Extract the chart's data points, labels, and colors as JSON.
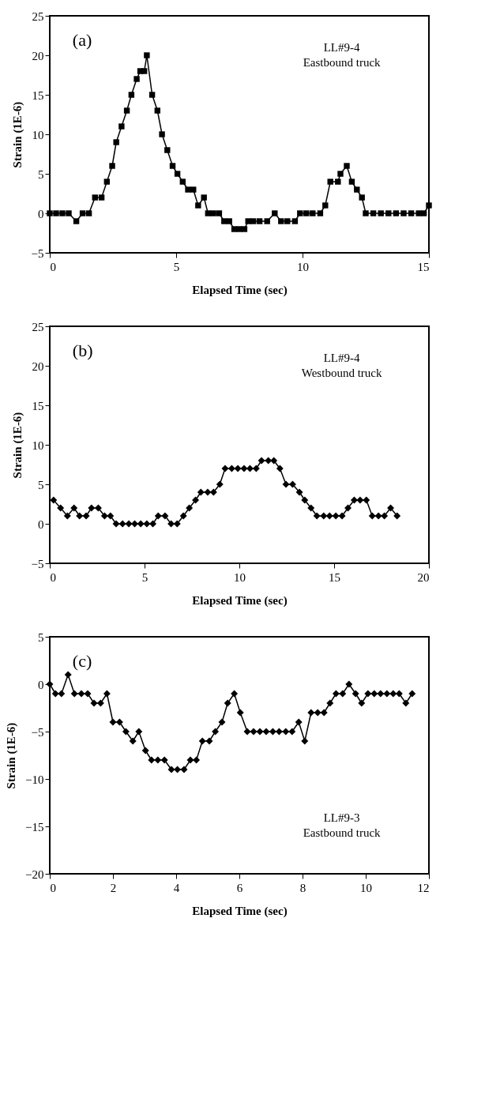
{
  "chart_data": [
    {
      "type": "line",
      "xlabel": "Elapsed Time (sec)",
      "ylabel": "Strain (1E-6)",
      "xlim": [
        0,
        15
      ],
      "ylim": [
        -5,
        25
      ],
      "xticks": [
        0,
        5,
        10,
        15
      ],
      "yticks": [
        -5,
        0,
        5,
        10,
        15,
        20,
        25
      ],
      "grid": false,
      "marker": "square",
      "line_style": "solid",
      "annotations": [
        "(a)",
        "LL#9-4\nEastbound truck"
      ],
      "series": [
        {
          "color": "#000000",
          "x": [
            0,
            0.25,
            0.5,
            0.75,
            1.05,
            1.3,
            1.55,
            1.79,
            2.05,
            2.26,
            2.47,
            2.63,
            2.84,
            3.05,
            3.23,
            3.44,
            3.58,
            3.74,
            3.84,
            4.05,
            4.26,
            4.44,
            4.65,
            4.86,
            5.05,
            5.26,
            5.47,
            5.68,
            5.87,
            6.1,
            6.26,
            6.47,
            6.7,
            6.9,
            7.1,
            7.3,
            7.5,
            7.7,
            7.85,
            8.05,
            8.3,
            8.6,
            8.9,
            9.15,
            9.4,
            9.7,
            9.9,
            10.15,
            10.4,
            10.7,
            10.9,
            11.1,
            11.4,
            11.5,
            11.75,
            11.95,
            12.15,
            12.35,
            12.5,
            12.8,
            13.1,
            13.4,
            13.7,
            14.0,
            14.3,
            14.6,
            14.8,
            15
          ],
          "values": [
            0,
            0,
            0,
            0,
            -1,
            0,
            0,
            2,
            2,
            4,
            6,
            9,
            11,
            13,
            15,
            17,
            18,
            18,
            20,
            15,
            13,
            10,
            8,
            6,
            5,
            4,
            3,
            3,
            1,
            2,
            0,
            0,
            0,
            -1,
            -1,
            -2,
            -2,
            -2,
            -1,
            -1,
            -1,
            -1,
            0,
            -1,
            -1,
            -1,
            0,
            0,
            0,
            0,
            1,
            4,
            4,
            5,
            6,
            4,
            3,
            2,
            0,
            0,
            0,
            0,
            0,
            0,
            0,
            0,
            0,
            1
          ]
        }
      ]
    },
    {
      "type": "line",
      "xlabel": "Elapsed Time (sec)",
      "ylabel": "Strain (1E-6)",
      "xlim": [
        0,
        20
      ],
      "ylim": [
        -5,
        25
      ],
      "xticks": [
        0,
        5,
        10,
        15,
        20
      ],
      "yticks": [
        -5,
        0,
        5,
        10,
        15,
        20,
        25
      ],
      "grid": false,
      "marker": "diamond",
      "line_style": "solid",
      "annotations": [
        "(b)",
        "LL#9-4\nWestbound truck"
      ],
      "series": [
        {
          "color": "#000000",
          "x": [
            0.2,
            0.57,
            0.93,
            1.28,
            1.57,
            1.92,
            2.2,
            2.56,
            2.89,
            3.2,
            3.5,
            3.84,
            4.17,
            4.48,
            4.8,
            5.12,
            5.44,
            5.72,
            6.08,
            6.4,
            6.72,
            7.05,
            7.36,
            7.69,
            7.97,
            8.33,
            8.64,
            8.97,
            9.25,
            9.6,
            9.92,
            10.25,
            10.56,
            10.89,
            11.17,
            11.53,
            11.82,
            12.14,
            12.46,
            12.81,
            13.17,
            13.45,
            13.78,
            14.09,
            14.45,
            14.76,
            15.09,
            15.42,
            15.73,
            16.06,
            16.37,
            16.7,
            17.01,
            17.34,
            17.65,
            17.98,
            18.32
          ],
          "values": [
            3,
            2,
            1,
            2,
            1,
            1,
            2,
            2,
            1,
            1,
            0,
            0,
            0,
            0,
            0,
            0,
            0,
            1,
            1,
            0,
            0,
            1,
            2,
            3,
            4,
            4,
            4,
            5,
            7,
            7,
            7,
            7,
            7,
            7,
            8,
            8,
            8,
            7,
            5,
            5,
            4,
            3,
            2,
            1,
            1,
            1,
            1,
            1,
            2,
            3,
            3,
            3,
            1,
            1,
            1,
            2,
            1
          ]
        }
      ]
    },
    {
      "type": "line",
      "xlabel": "Elapsed Time (sec)",
      "ylabel": "Strain (1E-6)",
      "xlim": [
        0,
        12
      ],
      "ylim": [
        -20,
        5
      ],
      "xticks": [
        0,
        2,
        4,
        6,
        8,
        10,
        12
      ],
      "yticks": [
        -20,
        -15,
        -10,
        -5,
        0,
        5
      ],
      "grid": false,
      "marker": "diamond",
      "line_style": "solid",
      "annotations": [
        "(c)",
        "LL#9-3\nEastbound truck"
      ],
      "series": [
        {
          "color": "#000000",
          "x": [
            0,
            0.18,
            0.37,
            0.58,
            0.78,
            1.0,
            1.2,
            1.4,
            1.61,
            1.81,
            2.0,
            2.21,
            2.41,
            2.63,
            2.82,
            3.03,
            3.22,
            3.42,
            3.63,
            3.85,
            4.04,
            4.25,
            4.45,
            4.64,
            4.83,
            5.05,
            5.24,
            5.45,
            5.63,
            5.84,
            6.03,
            6.25,
            6.45,
            6.65,
            6.85,
            7.06,
            7.26,
            7.47,
            7.67,
            7.88,
            8.07,
            8.27,
            8.48,
            8.68,
            8.87,
            9.06,
            9.27,
            9.47,
            9.68,
            9.87,
            10.07,
            10.27,
            10.47,
            10.67,
            10.87,
            11.06,
            11.27,
            11.47
          ],
          "values": [
            0,
            -1,
            -1,
            1,
            -1,
            -1,
            -1,
            -2,
            -2,
            -1,
            -4,
            -4,
            -5,
            -6,
            -5,
            -7,
            -8,
            -8,
            -8,
            -9,
            -9,
            -9,
            -8,
            -8,
            -6,
            -6,
            -5,
            -4,
            -2,
            -1,
            -3,
            -5,
            -5,
            -5,
            -5,
            -5,
            -5,
            -5,
            -5,
            -4,
            -6,
            -3,
            -3,
            -3,
            -2,
            -1,
            -1,
            0,
            -1,
            -2,
            -1,
            -1,
            -1,
            -1,
            -1,
            -1,
            -2,
            -1
          ]
        }
      ]
    }
  ]
}
